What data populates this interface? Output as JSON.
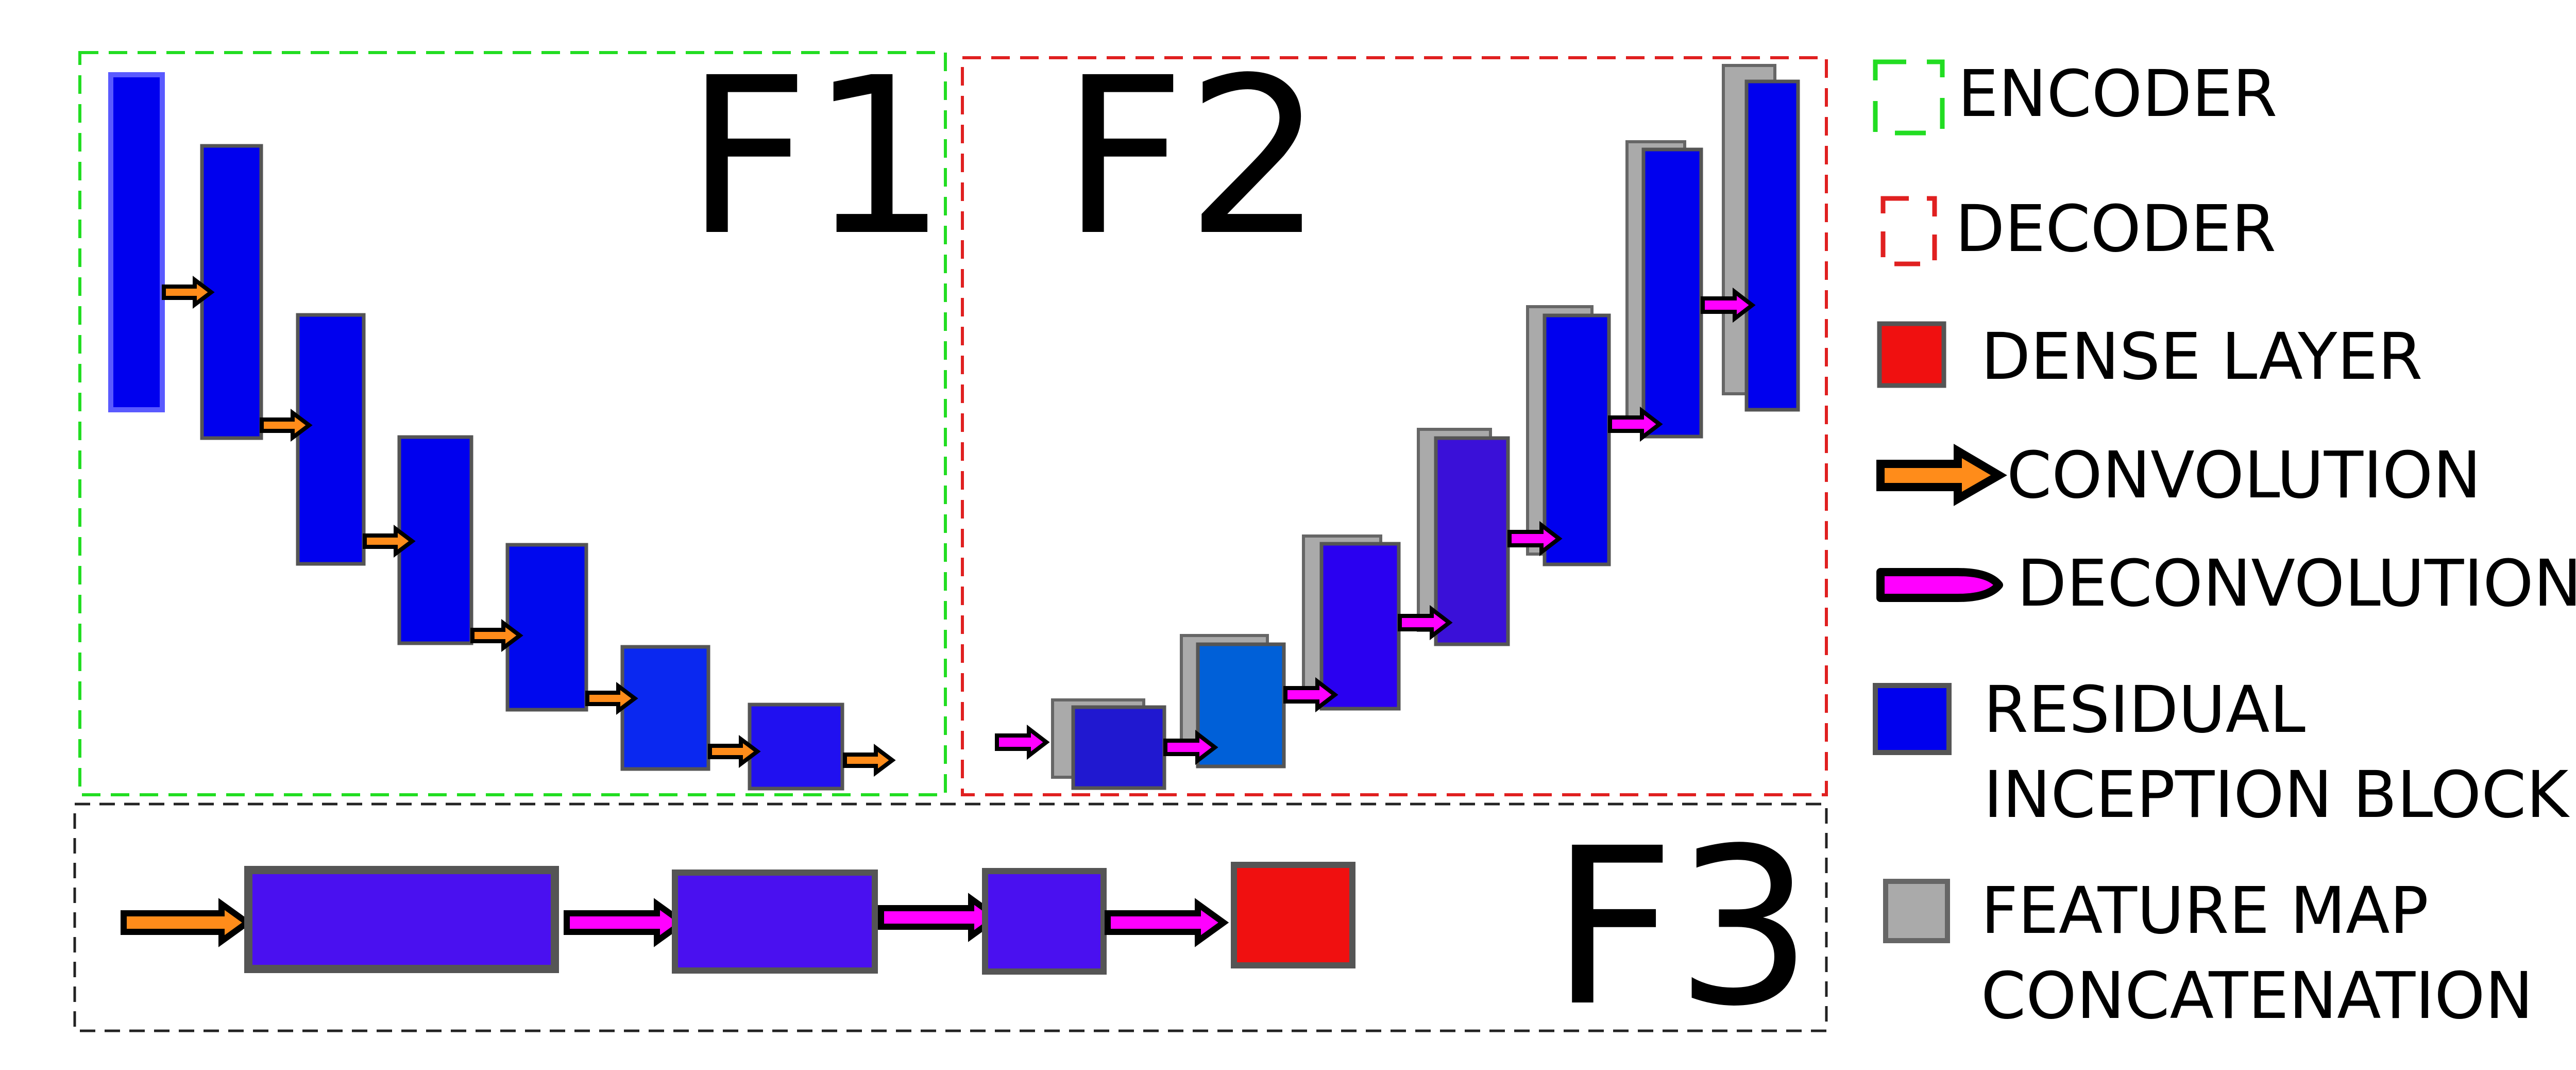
{
  "panels": {
    "f1": {
      "label": "F1",
      "border_color": "#22dd22"
    },
    "f2": {
      "label": "F2",
      "border_color": "#e02020"
    },
    "f3": {
      "label": "F3",
      "border_color": "#222222"
    }
  },
  "colors": {
    "block": "#0000ee",
    "block_f3": "#4a10f0",
    "feature_map": "#aaaaaa",
    "dense": "#f01010",
    "conv_arrow": "#ff8c1a",
    "deconv_arrow": "#ff00ff"
  },
  "legend": {
    "encoder": "ENCODER",
    "decoder": "DECODER",
    "dense": "DENSE LAYER",
    "convolution": "CONVOLUTION",
    "deconvolution": "DECONVOLUTION",
    "residual_line1": "RESIDUAL",
    "residual_line2": "INCEPTION BLOCK",
    "feature_line1": "FEATURE MAP",
    "feature_line2": "CONCATENATION"
  }
}
